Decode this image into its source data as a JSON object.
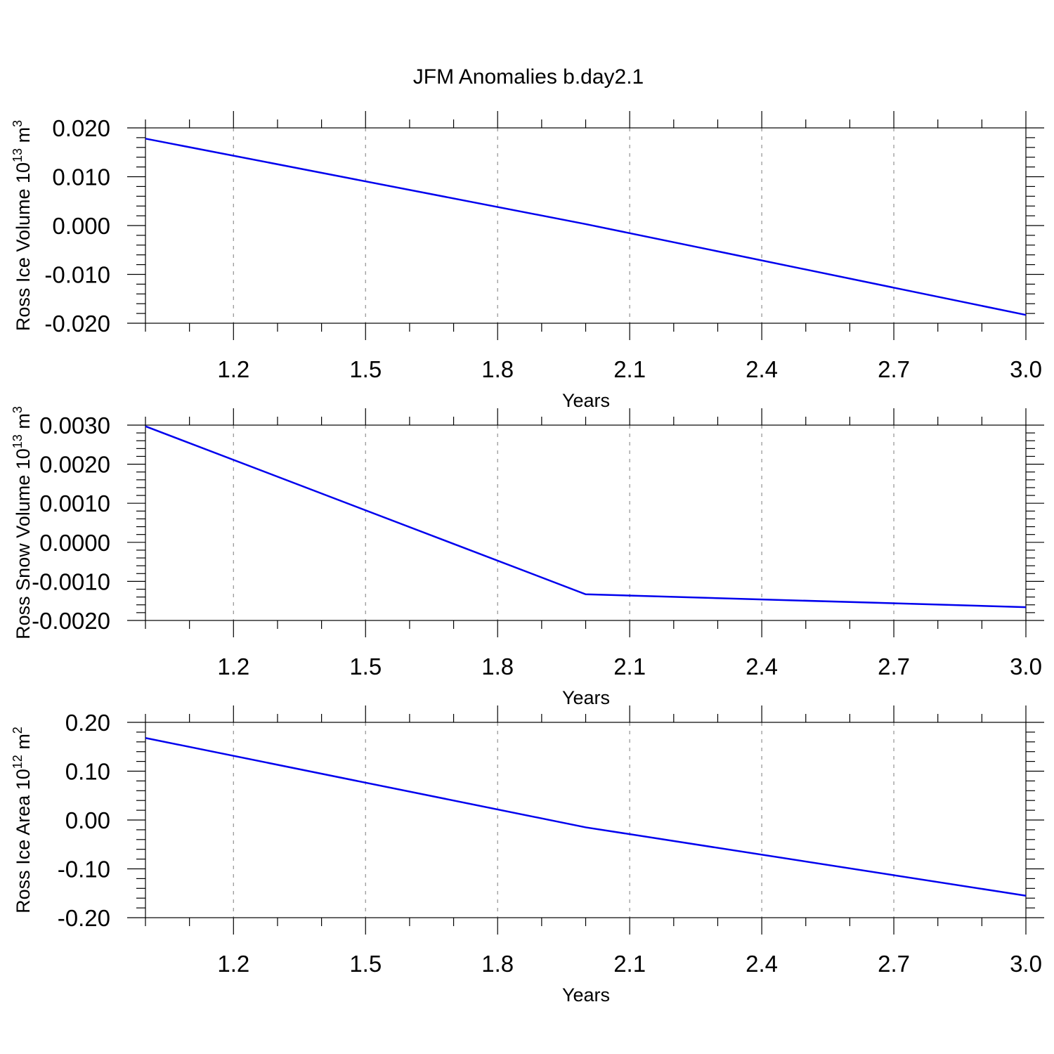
{
  "title": "JFM Anomalies b.day2.1",
  "colors": {
    "series": "#0000ee",
    "grid": "#999999",
    "axis": "#000000"
  },
  "chart_data": [
    {
      "type": "line",
      "ylabel": "Ross Ice Volume 10",
      "ylabel_exp": "13",
      "ylabel_unit": " m",
      "ylabel_unit_exp": "3",
      "xlabel": "Years",
      "xlim": [
        1.0,
        3.0
      ],
      "ylim": [
        -0.02,
        0.02
      ],
      "xticks": [
        1.2,
        1.5,
        1.8,
        2.1,
        2.4,
        2.7,
        3.0
      ],
      "xtick_labels": [
        "1.2",
        "1.5",
        "1.8",
        "2.1",
        "2.4",
        "2.7",
        "3.0"
      ],
      "yticks": [
        -0.02,
        -0.01,
        0.0,
        0.01,
        0.02
      ],
      "ytick_labels": [
        "-0.020",
        "-0.010",
        "0.000",
        "0.010",
        "0.020"
      ],
      "yminor_step": 0.002,
      "x": [
        1.0,
        2.0,
        3.0
      ],
      "values": [
        0.0178,
        0.0003,
        -0.0183
      ]
    },
    {
      "type": "line",
      "ylabel": "Ross Snow Volume 10",
      "ylabel_exp": "13",
      "ylabel_unit": " m",
      "ylabel_unit_exp": "3",
      "xlabel": "Years",
      "xlim": [
        1.0,
        3.0
      ],
      "ylim": [
        -0.002,
        0.003
      ],
      "xticks": [
        1.2,
        1.5,
        1.8,
        2.1,
        2.4,
        2.7,
        3.0
      ],
      "xtick_labels": [
        "1.2",
        "1.5",
        "1.8",
        "2.1",
        "2.4",
        "2.7",
        "3.0"
      ],
      "yticks": [
        -0.002,
        -0.001,
        0.0,
        0.001,
        0.002,
        0.003
      ],
      "ytick_labels": [
        "-0.0020",
        "-0.0010",
        "0.0000",
        "0.0010",
        "0.0020",
        "0.0030"
      ],
      "yminor_step": 0.0002,
      "x": [
        1.0,
        2.0,
        3.0
      ],
      "values": [
        0.00297,
        -0.00133,
        -0.00166
      ]
    },
    {
      "type": "line",
      "ylabel": "Ross Ice Area 10",
      "ylabel_exp": "12",
      "ylabel_unit": " m",
      "ylabel_unit_exp": "2",
      "xlabel": "Years",
      "xlim": [
        1.0,
        3.0
      ],
      "ylim": [
        -0.2,
        0.2
      ],
      "xticks": [
        1.2,
        1.5,
        1.8,
        2.1,
        2.4,
        2.7,
        3.0
      ],
      "xtick_labels": [
        "1.2",
        "1.5",
        "1.8",
        "2.1",
        "2.4",
        "2.7",
        "3.0"
      ],
      "yticks": [
        -0.2,
        -0.1,
        0.0,
        0.1,
        0.2
      ],
      "ytick_labels": [
        "-0.20",
        "-0.10",
        "0.00",
        "0.10",
        "0.20"
      ],
      "yminor_step": 0.02,
      "x": [
        1.0,
        2.0,
        3.0
      ],
      "values": [
        0.168,
        -0.015,
        -0.155
      ]
    }
  ]
}
